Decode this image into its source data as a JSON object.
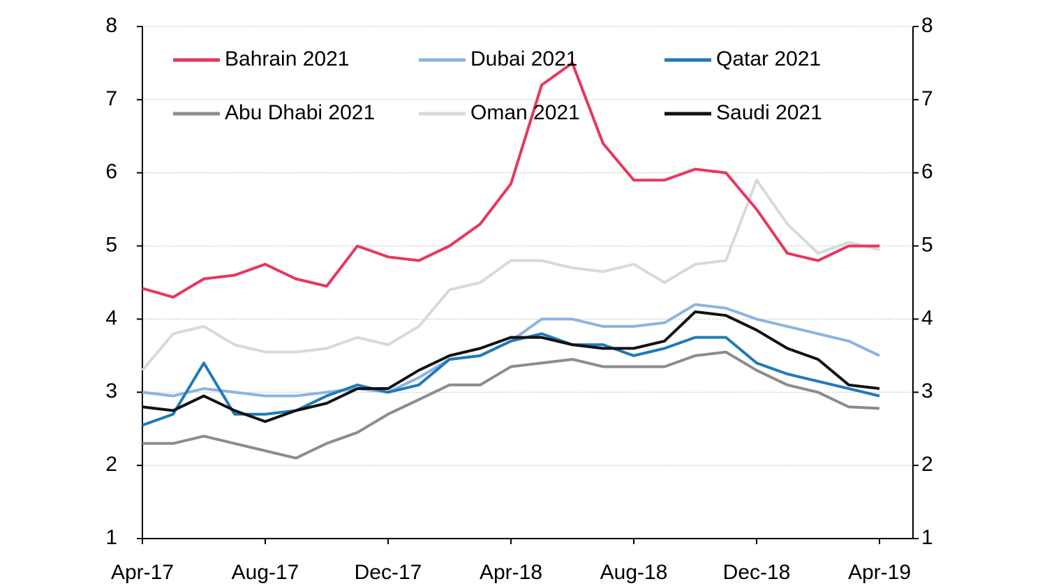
{
  "chart_data": {
    "type": "line",
    "categories": [
      "Apr-17",
      null,
      null,
      null,
      "Aug-17",
      null,
      null,
      null,
      "Dec-17",
      null,
      null,
      null,
      "Apr-18",
      null,
      null,
      null,
      "Aug-18",
      null,
      null,
      null,
      "Dec-18",
      null,
      null,
      null,
      "Apr-19"
    ],
    "series": [
      {
        "name": "Bahrain 2021",
        "color": "#e8365d",
        "values": [
          4.42,
          4.3,
          4.55,
          4.6,
          4.75,
          4.55,
          4.45,
          5.0,
          4.85,
          4.8,
          5.0,
          5.3,
          5.85,
          7.2,
          7.5,
          6.4,
          5.9,
          5.9,
          6.05,
          6.0,
          5.5,
          4.9,
          4.8,
          5.0,
          5.0
        ]
      },
      {
        "name": "Dubai 2021",
        "color": "#8db3e2",
        "values": [
          3.0,
          2.95,
          3.05,
          3.0,
          2.95,
          2.95,
          3.0,
          3.05,
          3.0,
          3.2,
          3.45,
          3.5,
          3.7,
          4.0,
          4.0,
          3.9,
          3.9,
          3.95,
          4.2,
          4.15,
          4.0,
          3.9,
          3.8,
          3.7,
          3.5
        ]
      },
      {
        "name": "Qatar 2021",
        "color": "#1f7ab8",
        "values": [
          2.55,
          2.7,
          3.4,
          2.7,
          2.7,
          2.75,
          2.95,
          3.1,
          3.0,
          3.1,
          3.45,
          3.5,
          3.7,
          3.8,
          3.65,
          3.65,
          3.5,
          3.6,
          3.75,
          3.75,
          3.4,
          3.25,
          3.15,
          3.05,
          2.95
        ]
      },
      {
        "name": "Abu Dhabi 2021",
        "color": "#8c8c8c",
        "values": [
          2.3,
          2.3,
          2.4,
          2.3,
          2.2,
          2.1,
          2.3,
          2.45,
          2.7,
          2.9,
          3.1,
          3.1,
          3.35,
          3.4,
          3.45,
          3.35,
          3.35,
          3.35,
          3.5,
          3.55,
          3.3,
          3.1,
          3.0,
          2.8,
          2.78
        ]
      },
      {
        "name": "Oman 2021",
        "color": "#d9d9d9",
        "values": [
          3.3,
          3.8,
          3.9,
          3.65,
          3.55,
          3.55,
          3.6,
          3.75,
          3.65,
          3.9,
          4.4,
          4.5,
          4.8,
          4.8,
          4.7,
          4.65,
          4.75,
          4.5,
          4.75,
          4.8,
          5.9,
          5.3,
          4.9,
          5.05,
          4.95
        ]
      },
      {
        "name": "Saudi 2021",
        "color": "#111111",
        "values": [
          2.8,
          2.75,
          2.95,
          2.75,
          2.6,
          2.75,
          2.85,
          3.05,
          3.05,
          3.3,
          3.5,
          3.6,
          3.75,
          3.75,
          3.65,
          3.6,
          3.6,
          3.7,
          4.1,
          4.05,
          3.85,
          3.6,
          3.45,
          3.1,
          3.05
        ]
      }
    ],
    "ylim": [
      1,
      8
    ],
    "yticks": [
      1,
      2,
      3,
      4,
      5,
      6,
      7,
      8
    ],
    "y2lim": [
      1,
      8
    ],
    "y2ticks": [
      1,
      2,
      3,
      4,
      5,
      6,
      7,
      8
    ],
    "grid": true,
    "legend": "top"
  }
}
